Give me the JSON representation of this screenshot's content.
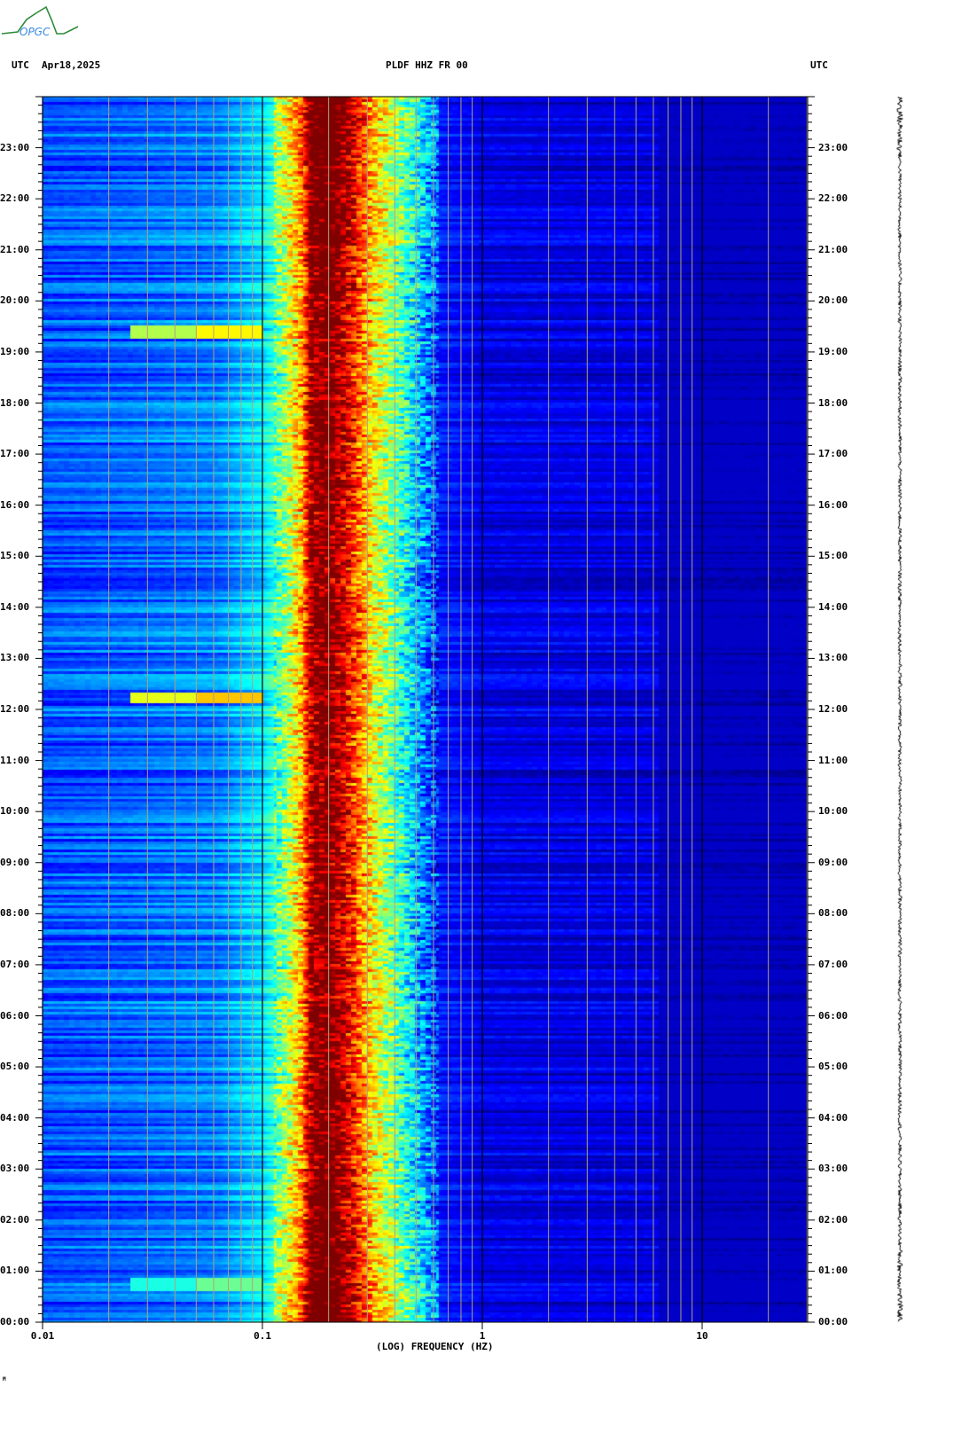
{
  "header": {
    "logo_text": "OPGC",
    "left_tz": "UTC",
    "date": "Apr18,2025",
    "station": "PLDF HHZ FR 00",
    "right_tz": "UTC"
  },
  "chart_data": {
    "type": "heatmap",
    "title": "PLDF HHZ FR 00",
    "xlabel": "(LOG) FREQUENCY (HZ)",
    "xscale": "log",
    "xlim": [
      0.01,
      30
    ],
    "x_tick_labels": [
      "0.01",
      "0.1",
      "1",
      "10"
    ],
    "x_tick_values": [
      0.01,
      0.1,
      1,
      10
    ],
    "ylim_hours": [
      0,
      24
    ],
    "y_tick_labels": [
      "00:00",
      "01:00",
      "02:00",
      "03:00",
      "04:00",
      "05:00",
      "06:00",
      "07:00",
      "08:00",
      "09:00",
      "10:00",
      "11:00",
      "12:00",
      "13:00",
      "14:00",
      "15:00",
      "16:00",
      "17:00",
      "18:00",
      "19:00",
      "20:00",
      "21:00",
      "22:00",
      "23:00"
    ],
    "colormap": "jet",
    "grid": true,
    "spectral_level_profile": {
      "freq_hz": [
        0.01,
        0.025,
        0.063,
        0.1,
        0.126,
        0.15,
        0.166,
        0.2,
        0.25,
        0.32,
        0.4,
        0.5,
        0.63,
        1,
        30
      ],
      "relative_level": [
        0.2,
        0.22,
        0.25,
        0.35,
        0.5,
        0.68,
        0.95,
        1.0,
        0.85,
        0.6,
        0.45,
        0.3,
        0.15,
        0.1,
        0.08
      ]
    },
    "events": [
      {
        "time": "19:25",
        "freq_hz": [
          0.025,
          0.1
        ],
        "relative_level": 0.55
      },
      {
        "time": "12:15",
        "freq_hz": [
          0.025,
          0.1
        ],
        "relative_level": 0.6
      },
      {
        "time": "00:45",
        "freq_hz": [
          0.025,
          0.1
        ],
        "relative_level": 0.4
      }
    ]
  },
  "footer": {
    "mark": "M"
  }
}
